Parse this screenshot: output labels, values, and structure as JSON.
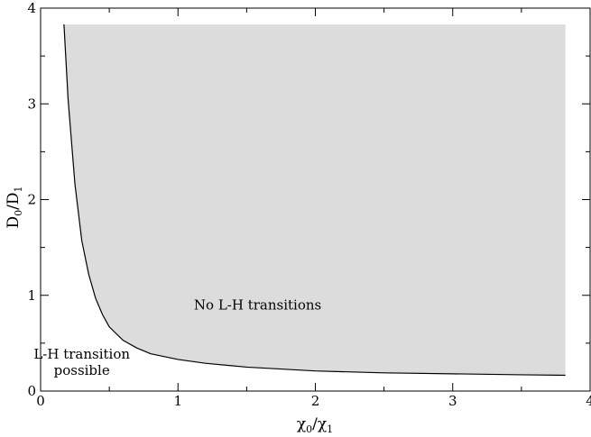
{
  "chart_data": {
    "type": "area",
    "xlim": [
      0,
      4
    ],
    "ylim": [
      0,
      4
    ],
    "x_ticks": [
      0,
      1,
      2,
      3,
      4
    ],
    "y_ticks": [
      0,
      1,
      2,
      3,
      4
    ],
    "x_tick_labels": [
      "0",
      "1",
      "2",
      "3",
      "4"
    ],
    "y_tick_labels": [
      "0",
      "1",
      "2",
      "3",
      "4"
    ],
    "x_minor_ticks": [
      0.5,
      1.5,
      2.5,
      3.5
    ],
    "y_minor_ticks": [
      0.5,
      1.5,
      2.5,
      3.5
    ],
    "xlabel": {
      "main": "χ",
      "sub1": "0",
      "sep": "/χ",
      "sub2": "1"
    },
    "ylabel": {
      "main": "D",
      "sub1": "0",
      "sep": "/D",
      "sub2": "1"
    },
    "grid": false,
    "curve": {
      "x": [
        0.17,
        0.2,
        0.25,
        0.3,
        0.35,
        0.4,
        0.45,
        0.5,
        0.6,
        0.7,
        0.8,
        1.0,
        1.2,
        1.5,
        2.0,
        2.5,
        3.0,
        3.5,
        3.82
      ],
      "y": [
        3.83,
        3.05,
        2.16,
        1.57,
        1.22,
        0.97,
        0.8,
        0.67,
        0.53,
        0.45,
        0.39,
        0.33,
        0.29,
        0.25,
        0.21,
        0.19,
        0.18,
        0.17,
        0.165
      ],
      "color": "#000000"
    },
    "shaded_region": {
      "x_range": [
        0.17,
        3.82
      ],
      "y_top": 3.83,
      "color": "#dcdcdc",
      "bounded_below_by": "curve"
    },
    "annotations": [
      {
        "id": "no-transition",
        "text": "No L-H transitions",
        "x": 1.58,
        "y": 0.85
      },
      {
        "id": "transition-line1",
        "text": "L-H transition",
        "x": 0.3,
        "y": 0.34
      },
      {
        "id": "transition-line2",
        "text": "possible",
        "x": 0.3,
        "y": 0.17
      }
    ]
  }
}
